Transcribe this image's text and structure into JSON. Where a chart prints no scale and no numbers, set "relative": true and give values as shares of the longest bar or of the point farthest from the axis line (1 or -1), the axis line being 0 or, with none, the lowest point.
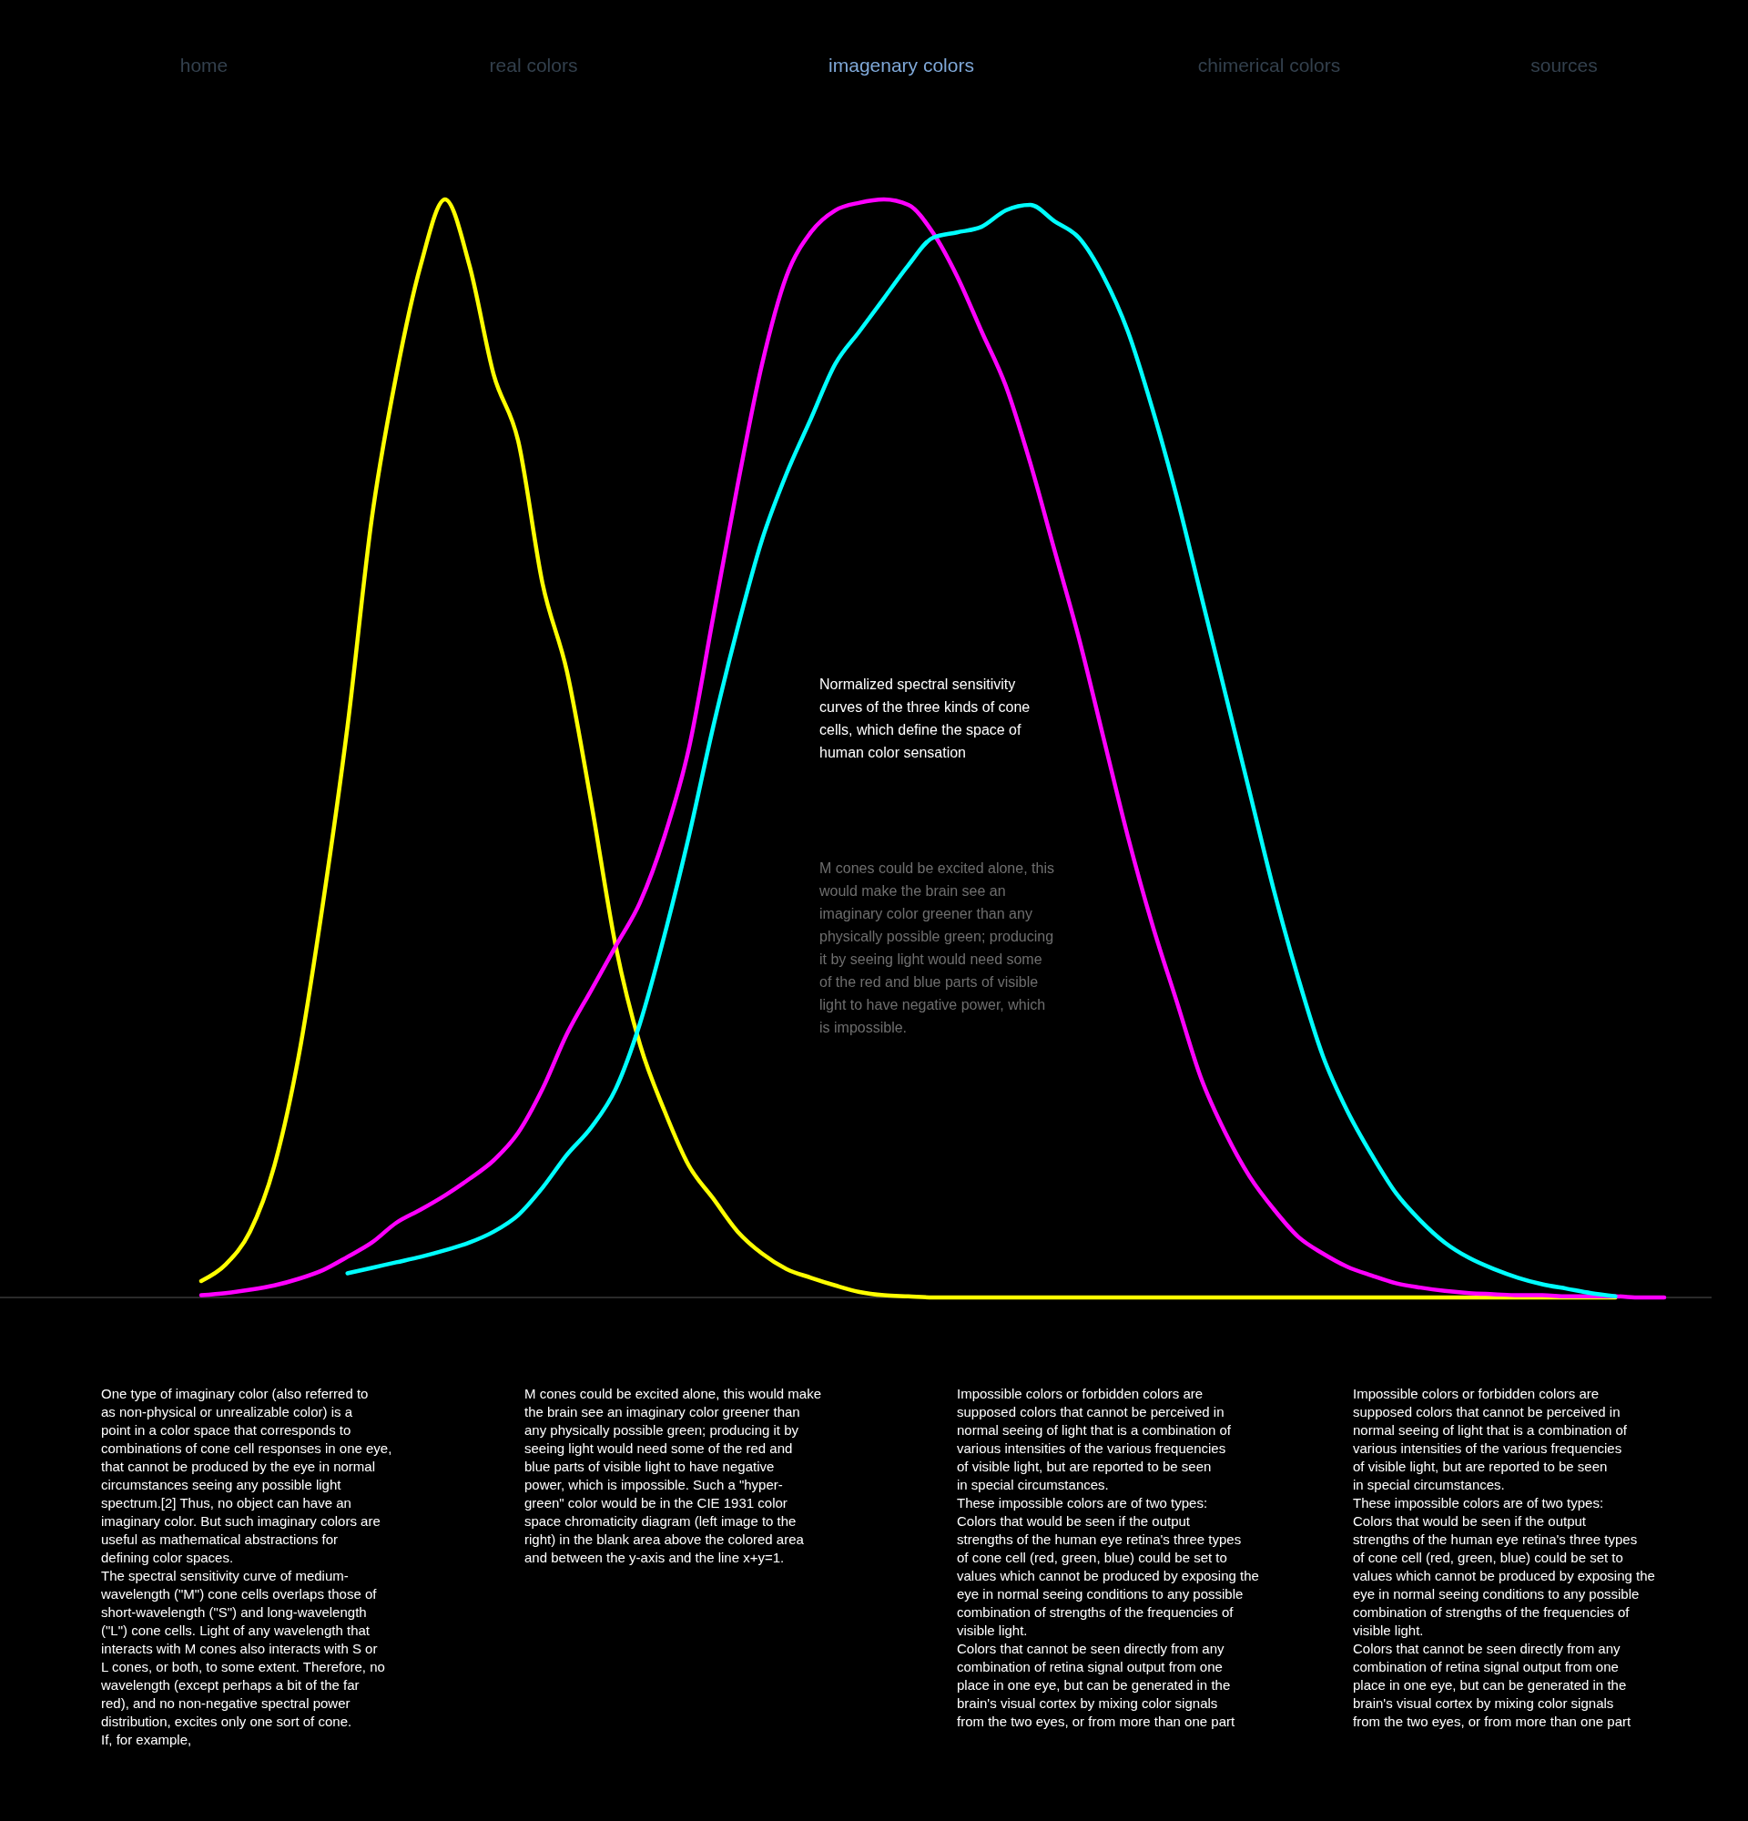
{
  "chart_data": {
    "type": "line",
    "relative": true,
    "line_style": "solid",
    "marker": "none",
    "categories": [
      null,
      null,
      null,
      null,
      null,
      null,
      null,
      null,
      null,
      null,
      null,
      null,
      null,
      null,
      null,
      null,
      null,
      null,
      null,
      null,
      null,
      null,
      null,
      null,
      null,
      null,
      null,
      null,
      null,
      null,
      null,
      null,
      null,
      null,
      null,
      null,
      null,
      null,
      null,
      null,
      null,
      null,
      null,
      null,
      null,
      null,
      null,
      null,
      null,
      null,
      null,
      null,
      null,
      null,
      null,
      null,
      null,
      null,
      null,
      null,
      null
    ],
    "series": [
      {
        "color": "#ffff00",
        "values": [
          0.015,
          0.03,
          0.06,
          0.12,
          0.22,
          0.36,
          0.52,
          0.71,
          0.84,
          0.94,
          1.0,
          0.94,
          0.84,
          0.78,
          0.65,
          0.57,
          0.45,
          0.32,
          0.23,
          0.17,
          0.12,
          0.09,
          0.06,
          0.04,
          0.026,
          0.018,
          0.011,
          0.005,
          0.002,
          0.001,
          0,
          0,
          0,
          0,
          0,
          0,
          0,
          0,
          0,
          0,
          0,
          0,
          0,
          0,
          0,
          0,
          0,
          0,
          0,
          0,
          0,
          0,
          0,
          0,
          0,
          0,
          0,
          0,
          0,
          null,
          null
        ]
      },
      {
        "color": "#ff00ff",
        "values": [
          0.002,
          0.004,
          0.007,
          0.011,
          0.017,
          0.025,
          0.037,
          0.05,
          0.068,
          0.08,
          0.093,
          0.108,
          0.125,
          0.15,
          0.19,
          0.24,
          0.28,
          0.32,
          0.36,
          0.42,
          0.5,
          0.62,
          0.74,
          0.85,
          0.93,
          0.97,
          0.99,
          0.997,
          1.0,
          0.995,
          0.97,
          0.93,
          0.88,
          0.83,
          0.76,
          0.68,
          0.6,
          0.51,
          0.42,
          0.34,
          0.27,
          0.2,
          0.15,
          0.11,
          0.08,
          0.055,
          0.04,
          0.028,
          0.02,
          0.013,
          0.009,
          0.006,
          0.004,
          0.003,
          0.002,
          0.002,
          0.001,
          0.001,
          0.001,
          0,
          0
        ]
      },
      {
        "color": "#00ffff",
        "values": [
          null,
          null,
          null,
          null,
          null,
          null,
          0.022,
          0.027,
          0.032,
          0.037,
          0.043,
          0.05,
          0.06,
          0.075,
          0.1,
          0.13,
          0.155,
          0.19,
          0.25,
          0.33,
          0.42,
          0.52,
          0.61,
          0.69,
          0.75,
          0.8,
          0.85,
          0.88,
          0.91,
          0.94,
          0.965,
          0.97,
          0.975,
          0.99,
          0.995,
          0.98,
          0.965,
          0.93,
          0.88,
          0.81,
          0.73,
          0.64,
          0.55,
          0.46,
          0.37,
          0.29,
          0.22,
          0.17,
          0.13,
          0.095,
          0.07,
          0.05,
          0.036,
          0.026,
          0.018,
          0.012,
          0.008,
          0.004,
          0.001,
          null,
          null
        ]
      }
    ],
    "annotations": [
      "home",
      "real colors",
      "imagenary colors",
      "chimerical colors",
      "sources",
      "Normalized spectral sensitivity curves of the three kinds of cone cells, which define the space of human color sensation",
      "M cones could be excited alone, this would make the brain see an imaginary color greener than any physically possible green; producing it by seeing light would need some of the red and blue parts of visible light to have negative power, which is impossible.",
      "One type of imaginary color (also referred to as non-physical or unrealizable color) is a point in a color space that corresponds to combinations of cone cell responses in one eye, that cannot be produced by the eye in normal circumstances seeing any possible light spectrum.[2] Thus, no object can have an imaginary color. But such imaginary colors are useful as mathematical abstractions for defining color spaces.\nThe spectral sensitivity curve of medium-wavelength (\"M\") cone cells overlaps those of short-wavelength (\"S\") and long-wavelength (\"L\") cone cells. Light of any wavelength that interacts with M cones also interacts with S or L cones, or both, to some extent. Therefore, no wavelength (except perhaps a bit of the far red), and no non-negative spectral power distribution, excites only one sort of cone. If, for example,",
      "M cones could be excited alone, this would make the brain see an imaginary color greener than any physically possible green; producing it by seeing light would need some of the red and blue parts of visible light to have negative power, which is impossible. Such a \"hyper-green\" color would be in the CIE 1931 color space chromaticity diagram (left image to the right) in the blank area above the colored area and between the y-axis and the line x+y=1.",
      "Impossible colors or forbidden colors are supposed colors that cannot be perceived in normal seeing of light that is a combination of various intensities of the various frequencies of visible light, but are reported to be seen in special circumstances.\n\nThese impossible colors are of two types:\nColors that would be seen if the output strengths of the human eye retina's three types of cone cell (red, green, blue) could be set to values which cannot be produced by exposing the eye in normal seeing conditions to any possible combination of strengths of the frequencies of visible light.\nColors that cannot be seen directly from any combination of retina signal output from one place in one eye, but can be generated in the brain's visual cortex by mixing color signals from the two eyes, or from more than one part",
      "Impossible colors or forbidden colors are supposed colors that cannot be perceived in normal seeing of light that is a combination of various intensities of the various frequencies of visible light, but are reported to be seen in special circumstances.\n\nThese impossible colors are of two types:\nColors that would be seen if the output strengths of the human eye retina's three types of cone cell (red, green, blue) could be set to values which cannot be produced by exposing the eye in normal seeing conditions to any possible combination of strengths of the frequencies of visible light.\nColors that cannot be seen directly from any combination of retina signal output from one place in one eye, but can be generated in the brain's visual cortex by mixing color signals from the two eyes, or from more than one part"
    ]
  }
}
